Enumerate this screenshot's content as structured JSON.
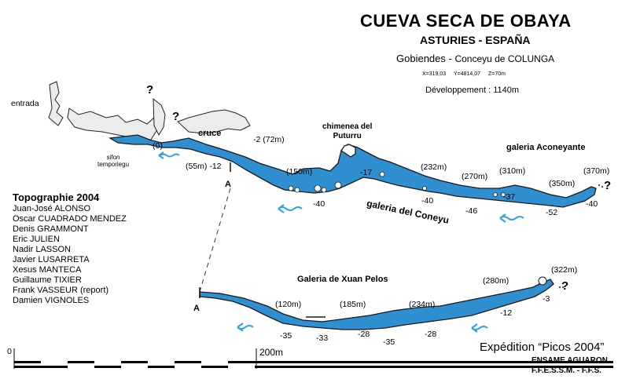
{
  "header": {
    "title": "CUEVA SECA DE  OBAYA",
    "subtitle": "ASTURIES - ESPAÑA",
    "location_place": "Gobiendes - ",
    "location_council": "Conceyu de COLUNGA",
    "coords": "X=319,03 Y=4814,07 Z=70m",
    "development": "Développement : 1140m"
  },
  "team": {
    "title": "Topographie 2004",
    "members": [
      "Juan-José ALONSO",
      "Oscar CUADRADO MENDEZ",
      "Denis GRAMMONT",
      "Eric JULIEN",
      "Nadir LASSON",
      "Javier LUSARRETA",
      "Xesus MANTECA",
      "Guillaume TIXIER",
      "Frank VASSEUR (report)",
      "Damien VIGNOLES"
    ]
  },
  "footer": {
    "expedition": "Expédition “Picos 2004”",
    "org1": "ENSAME AGUARON",
    "org2": "F.F.E.S.S.M. - F.F.S."
  },
  "scale": {
    "start": "0",
    "end": "200m"
  },
  "labels": {
    "entrada": "entrada",
    "sifon": "sifon\ntemporiegu",
    "cruce": "cruce",
    "chimenea": "chimenea del\nPuturru",
    "galeria_aconeyante": "galeria  Aconeyante",
    "galeria_coneyu": "galeria  del  Coneyu",
    "galeria_xuan": "Galeria de Xuan Pelos",
    "marker_a": "A",
    "question": "?"
  },
  "depths": {
    "d0": "(0)",
    "d2": "-2 (72m)",
    "d55": "(55m) -12",
    "d150": "(150m)",
    "m17": "-17",
    "d232": "(232m)",
    "d270": "(270m)",
    "d310": "(310m)",
    "d370": "(370m)",
    "m40a": "-40",
    "m40b": "-40",
    "m46": "-46",
    "m37": "-37",
    "d350": "(350m)",
    "m52": "-52",
    "m40c": "-40",
    "d120": "(120m)",
    "d185": "(185m)",
    "d234": "(234m)",
    "d280": "(280m)",
    "d322": "(322m)",
    "m35a": "-35",
    "m33": "-33",
    "m28a": "-28",
    "m35b": "-35",
    "m28b": "-28",
    "m12": "-12",
    "m3": "-3"
  },
  "colors": {
    "water": "#2f8fd0",
    "outline": "#1a1a1a",
    "rock": "#e8e8e8"
  }
}
